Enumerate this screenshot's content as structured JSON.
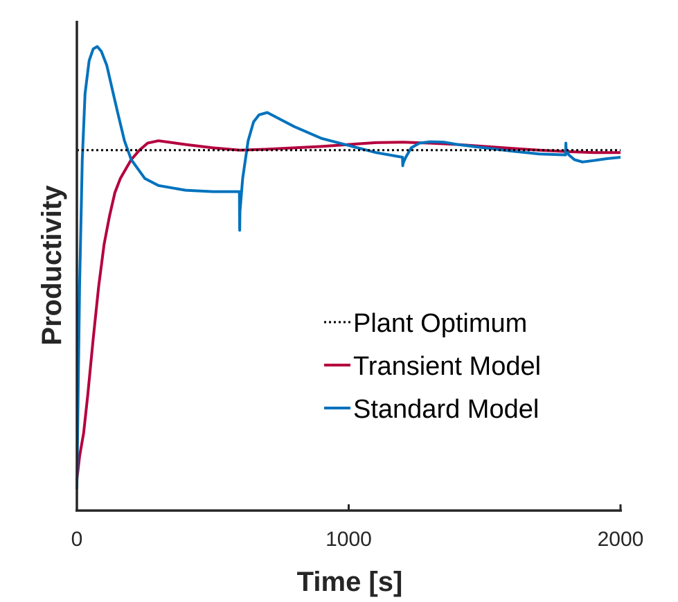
{
  "chart_data": {
    "type": "line",
    "xlabel": "Time [s]",
    "ylabel": "Productivity",
    "xlim": [
      0,
      2000
    ],
    "ylim": [
      0,
      1
    ],
    "x_ticks": [
      0,
      1000,
      2000
    ],
    "x_tick_labels": [
      "0",
      "1000",
      "2000"
    ],
    "y_tick_labels": [],
    "grid": false,
    "legend_position": "lower-right",
    "series": [
      {
        "name": "Plant Optimum",
        "color": "#000000",
        "style": "dotted",
        "x": [
          0,
          2000
        ],
        "y": [
          0.74,
          0.74
        ]
      },
      {
        "name": "Transient Model",
        "color": "#b5003e",
        "style": "solid",
        "x": [
          0,
          10,
          25,
          40,
          60,
          80,
          100,
          120,
          140,
          160,
          180,
          200,
          230,
          260,
          300,
          350,
          400,
          500,
          600,
          700,
          800,
          900,
          1000,
          1100,
          1200,
          1300,
          1400,
          1500,
          1600,
          1700,
          1800,
          1900,
          2000
        ],
        "y": [
          0.04,
          0.09,
          0.14,
          0.22,
          0.34,
          0.45,
          0.54,
          0.6,
          0.65,
          0.68,
          0.7,
          0.72,
          0.74,
          0.755,
          0.76,
          0.756,
          0.752,
          0.745,
          0.74,
          0.742,
          0.745,
          0.748,
          0.752,
          0.756,
          0.757,
          0.755,
          0.752,
          0.748,
          0.744,
          0.74,
          0.737,
          0.735,
          0.735
        ]
      },
      {
        "name": "Standard Model",
        "color": "#0072bd",
        "style": "solid",
        "x": [
          0,
          10,
          20,
          30,
          45,
          60,
          75,
          90,
          110,
          130,
          150,
          175,
          200,
          250,
          300,
          400,
          500,
          598,
          599,
          600,
          610,
          630,
          650,
          670,
          700,
          750,
          800,
          900,
          1000,
          1100,
          1198,
          1199,
          1200,
          1210,
          1230,
          1260,
          1300,
          1350,
          1400,
          1500,
          1600,
          1700,
          1798,
          1799,
          1800,
          1810,
          1830,
          1860,
          1900,
          1950,
          2000
        ],
        "y": [
          0.02,
          0.45,
          0.72,
          0.86,
          0.93,
          0.955,
          0.96,
          0.95,
          0.92,
          0.87,
          0.82,
          0.76,
          0.72,
          0.68,
          0.665,
          0.655,
          0.652,
          0.652,
          0.57,
          0.61,
          0.68,
          0.76,
          0.8,
          0.815,
          0.82,
          0.805,
          0.79,
          0.765,
          0.75,
          0.735,
          0.725,
          0.707,
          0.712,
          0.725,
          0.745,
          0.755,
          0.758,
          0.757,
          0.752,
          0.745,
          0.738,
          0.732,
          0.73,
          0.755,
          0.74,
          0.73,
          0.72,
          0.715,
          0.718,
          0.722,
          0.725
        ]
      }
    ]
  }
}
